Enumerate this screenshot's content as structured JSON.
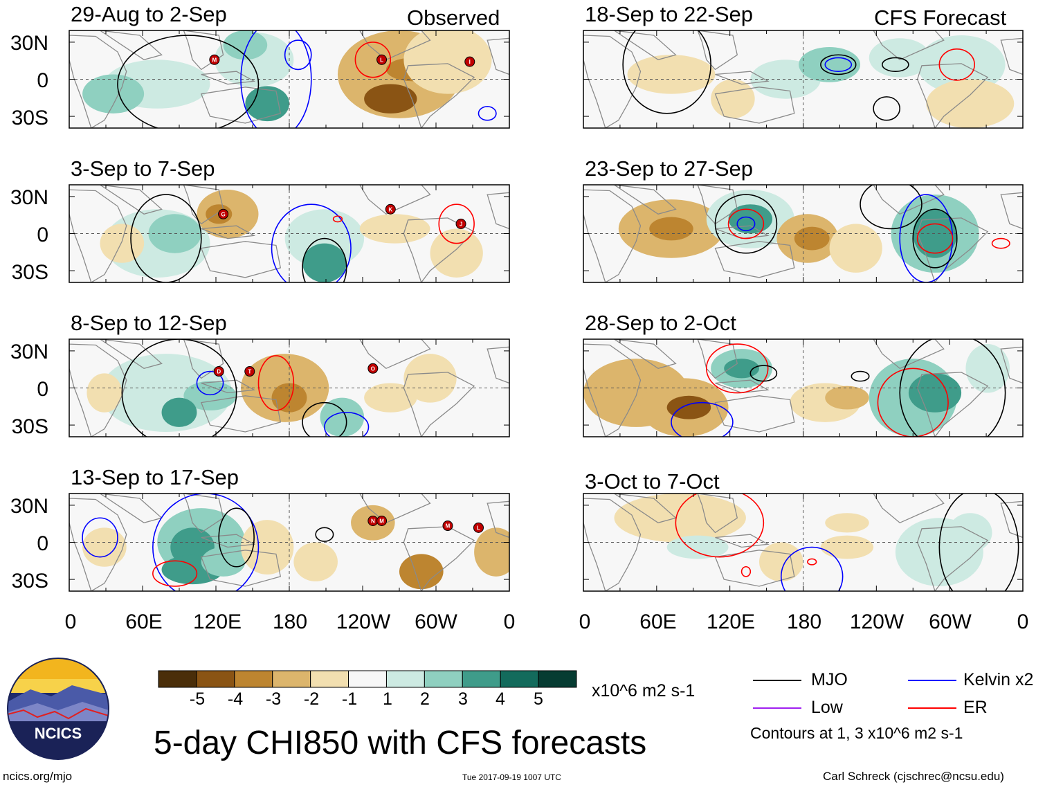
{
  "headers": {
    "observed": "Observed",
    "forecast": "CFS Forecast"
  },
  "panels": {
    "left": [
      {
        "label": "29-Aug to 2-Sep",
        "storms": [
          "M",
          "L",
          "I"
        ]
      },
      {
        "label": "3-Sep to 7-Sep",
        "storms": [
          "G",
          "K",
          "J"
        ]
      },
      {
        "label": "8-Sep to 12-Sep",
        "storms": [
          "D",
          "T",
          "O"
        ]
      },
      {
        "label": "13-Sep to 17-Sep",
        "storms": [
          "N",
          "M",
          "M",
          "L"
        ]
      }
    ],
    "right": [
      {
        "label": "18-Sep to 22-Sep"
      },
      {
        "label": "23-Sep to 27-Sep"
      },
      {
        "label": "28-Sep to 2-Oct"
      },
      {
        "label": "3-Oct to 7-Oct"
      }
    ]
  },
  "lat_labels": [
    "30N",
    "0",
    "30S"
  ],
  "lon_labels": [
    "0",
    "60E",
    "120E",
    "180",
    "120W",
    "60W",
    "0"
  ],
  "colorbar": {
    "ticks": [
      "-5",
      "-4",
      "-3",
      "-2",
      "-1",
      "1",
      "2",
      "3",
      "4",
      "5"
    ],
    "colors": [
      "#4a2e09",
      "#8a5414",
      "#bd8530",
      "#dcb56c",
      "#f2dfb0",
      "#f7f7f7",
      "#cdeae2",
      "#8fd0c0",
      "#3f9c8a",
      "#136b5c",
      "#063c32"
    ],
    "units": "x10^6 m2 s-1"
  },
  "legend": {
    "items": [
      {
        "label": "MJO",
        "color": "#000000"
      },
      {
        "label": "Kelvin x2",
        "color": "#0000ff"
      },
      {
        "label": "Low",
        "color": "#a020f0"
      },
      {
        "label": "ER",
        "color": "#ff0000"
      }
    ],
    "note": "Contours at 1, 3 x10^6 m2 s-1"
  },
  "logo": {
    "text": "NCICS"
  },
  "title": "5-day CHI850 with CFS forecasts",
  "footer": {
    "url": "ncics.org/mjo",
    "timestamp": "Tue 2017-09-19 1007 UTC",
    "author": "Carl Schreck (cjschrec@ncsu.edu)"
  },
  "style": {
    "land_color": "#8a8a8a",
    "frame_color": "#000000",
    "storm_color": "#c00000"
  }
}
